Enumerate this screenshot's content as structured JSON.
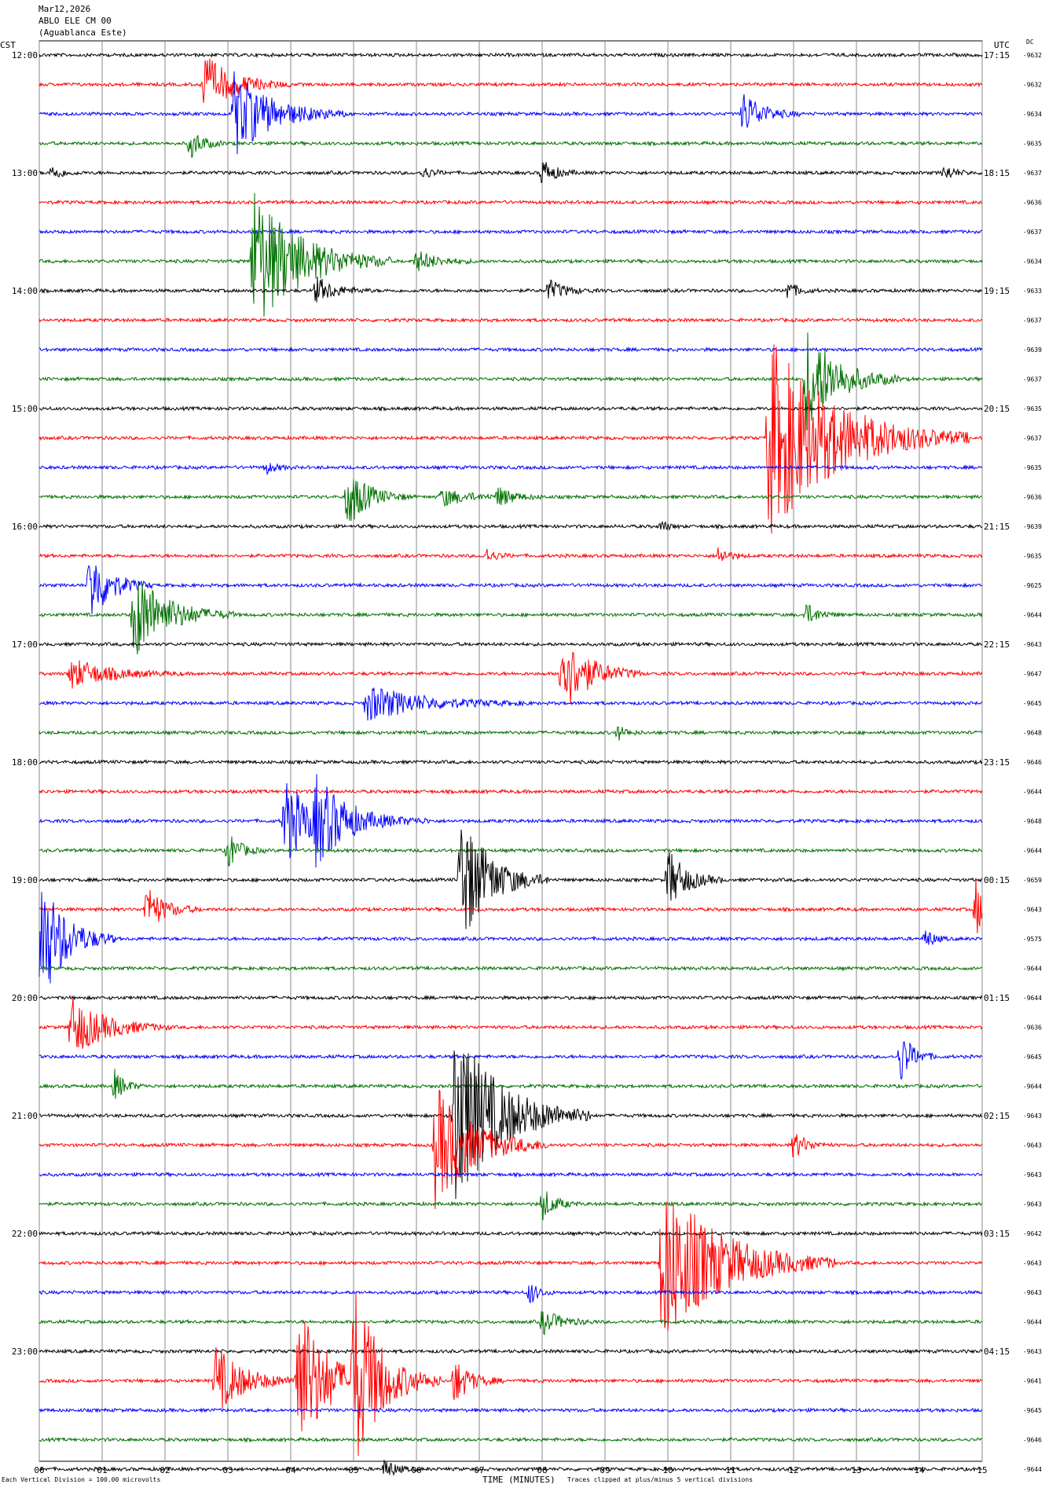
{
  "header": {
    "date": "Mar12,2026",
    "station": "ABLO ELE CM 00",
    "location": "(Aguablanca Este)",
    "left_tz": "CST",
    "right_tz": "UTC",
    "dc_label": "DC"
  },
  "footer": {
    "xlabel": "TIME (MINUTES)",
    "scale_note": "Each Vertical Division =  100.00 microvolts",
    "clip_note": "Traces clipped at plus/minus 5 vertical divisions"
  },
  "chart_data": {
    "type": "line",
    "x_range": [
      0,
      15
    ],
    "x_ticks": [
      "00",
      "01",
      "02",
      "03",
      "04",
      "05",
      "06",
      "07",
      "08",
      "09",
      "10",
      "11",
      "12",
      "13",
      "14",
      "15"
    ],
    "trace_colors": [
      "#000000",
      "#ff0000",
      "#0000ff",
      "#007000"
    ],
    "hour_labels_cst": [
      "12:00",
      "13:00",
      "14:00",
      "15:00",
      "16:00",
      "17:00",
      "18:00",
      "19:00",
      "20:00",
      "21:00",
      "22:00",
      "23:00"
    ],
    "hour_labels_utc": [
      "17:15",
      "18:15",
      "19:15",
      "20:15",
      "21:15",
      "22:15",
      "23:15",
      "00:15",
      "01:15",
      "02:15",
      "03:15",
      "04:15"
    ],
    "dc_offsets": [
      "-9632",
      "-9632",
      "-9634",
      "-9635",
      "-9637",
      "-9636",
      "-9637",
      "-9634",
      "-9633",
      "-9637",
      "-9639",
      "-9637",
      "-9635",
      "-9637",
      "-9635",
      "-9636",
      "-9639",
      "-9635",
      "-9625",
      "-9644",
      "-9643",
      "-9647",
      "-9645",
      "-9648",
      "-9646",
      "-9644",
      "-9648",
      "-9644",
      "-9659",
      "-9643",
      "-9575",
      "-9644",
      "-9644",
      "-9636",
      "-9645",
      "-9644",
      "-9643",
      "-9643",
      "-9643",
      "-9643",
      "-9642",
      "-9643",
      "-9643",
      "-9644",
      "-9643",
      "-9641",
      "-9645",
      "-9646",
      "-9644"
    ],
    "events": [
      {
        "row": 1,
        "minute": 2.6,
        "amp": 40,
        "dur": 1.4
      },
      {
        "row": 2,
        "minute": 3.1,
        "amp": 55,
        "dur": 1.8
      },
      {
        "row": 2,
        "minute": 11.2,
        "amp": 30,
        "dur": 0.9
      },
      {
        "row": 3,
        "minute": 2.4,
        "amp": 20,
        "dur": 0.6
      },
      {
        "row": 4,
        "minute": 0.2,
        "amp": 10,
        "dur": 0.5
      },
      {
        "row": 4,
        "minute": 6.1,
        "amp": 8,
        "dur": 0.5
      },
      {
        "row": 4,
        "minute": 8.0,
        "amp": 18,
        "dur": 0.6
      },
      {
        "row": 4,
        "minute": 14.4,
        "amp": 10,
        "dur": 0.5
      },
      {
        "row": 7,
        "minute": 3.4,
        "amp": 95,
        "dur": 2.2
      },
      {
        "row": 7,
        "minute": 6.0,
        "amp": 14,
        "dur": 1.0
      },
      {
        "row": 8,
        "minute": 4.4,
        "amp": 18,
        "dur": 0.9
      },
      {
        "row": 8,
        "minute": 8.1,
        "amp": 14,
        "dur": 0.8
      },
      {
        "row": 8,
        "minute": 11.9,
        "amp": 12,
        "dur": 0.5
      },
      {
        "row": 11,
        "minute": 12.2,
        "amp": 70,
        "dur": 1.5
      },
      {
        "row": 13,
        "minute": 11.6,
        "amp": 130,
        "dur": 3.2
      },
      {
        "row": 14,
        "minute": 3.6,
        "amp": 8,
        "dur": 0.5
      },
      {
        "row": 15,
        "minute": 4.9,
        "amp": 40,
        "dur": 1.0
      },
      {
        "row": 15,
        "minute": 6.4,
        "amp": 12,
        "dur": 1.2
      },
      {
        "row": 15,
        "minute": 7.3,
        "amp": 12,
        "dur": 0.8
      },
      {
        "row": 16,
        "minute": 9.9,
        "amp": 8,
        "dur": 0.3
      },
      {
        "row": 17,
        "minute": 7.1,
        "amp": 10,
        "dur": 0.5
      },
      {
        "row": 17,
        "minute": 10.8,
        "amp": 12,
        "dur": 0.5
      },
      {
        "row": 18,
        "minute": 0.8,
        "amp": 50,
        "dur": 1.0
      },
      {
        "row": 19,
        "minute": 1.5,
        "amp": 60,
        "dur": 1.6
      },
      {
        "row": 19,
        "minute": 12.2,
        "amp": 14,
        "dur": 0.6
      },
      {
        "row": 21,
        "minute": 0.5,
        "amp": 20,
        "dur": 1.8
      },
      {
        "row": 21,
        "minute": 8.3,
        "amp": 55,
        "dur": 1.3
      },
      {
        "row": 22,
        "minute": 5.2,
        "amp": 24,
        "dur": 2.6
      },
      {
        "row": 23,
        "minute": 9.2,
        "amp": 10,
        "dur": 0.4
      },
      {
        "row": 26,
        "minute": 3.9,
        "amp": 60,
        "dur": 1.2
      },
      {
        "row": 26,
        "minute": 4.4,
        "amp": 45,
        "dur": 1.8
      },
      {
        "row": 27,
        "minute": 3.0,
        "amp": 24,
        "dur": 0.6
      },
      {
        "row": 28,
        "minute": 6.7,
        "amp": 90,
        "dur": 1.4
      },
      {
        "row": 28,
        "minute": 10.0,
        "amp": 40,
        "dur": 0.9
      },
      {
        "row": 29,
        "minute": 1.7,
        "amp": 30,
        "dur": 0.9
      },
      {
        "row": 29,
        "minute": 14.9,
        "amp": 40,
        "dur": 0.4
      },
      {
        "row": 30,
        "minute": 0.0,
        "amp": 90,
        "dur": 1.2
      },
      {
        "row": 30,
        "minute": 14.1,
        "amp": 14,
        "dur": 0.4
      },
      {
        "row": 33,
        "minute": 0.5,
        "amp": 40,
        "dur": 1.6
      },
      {
        "row": 34,
        "minute": 13.7,
        "amp": 34,
        "dur": 0.6
      },
      {
        "row": 35,
        "minute": 1.2,
        "amp": 20,
        "dur": 0.5
      },
      {
        "row": 36,
        "minute": 6.6,
        "amp": 120,
        "dur": 2.2
      },
      {
        "row": 37,
        "minute": 6.3,
        "amp": 80,
        "dur": 1.8
      },
      {
        "row": 37,
        "minute": 12.0,
        "amp": 18,
        "dur": 0.6
      },
      {
        "row": 39,
        "minute": 8.0,
        "amp": 22,
        "dur": 0.6
      },
      {
        "row": 41,
        "minute": 9.9,
        "amp": 110,
        "dur": 2.8
      },
      {
        "row": 42,
        "minute": 7.8,
        "amp": 16,
        "dur": 0.4
      },
      {
        "row": 43,
        "minute": 8.0,
        "amp": 16,
        "dur": 0.9
      },
      {
        "row": 45,
        "minute": 2.8,
        "amp": 45,
        "dur": 1.4
      },
      {
        "row": 45,
        "minute": 4.1,
        "amp": 110,
        "dur": 1.4
      },
      {
        "row": 45,
        "minute": 5.0,
        "amp": 110,
        "dur": 1.4
      },
      {
        "row": 45,
        "minute": 6.6,
        "amp": 30,
        "dur": 0.8
      },
      {
        "row": 48,
        "minute": 5.5,
        "amp": 14,
        "dur": 0.5
      }
    ]
  }
}
